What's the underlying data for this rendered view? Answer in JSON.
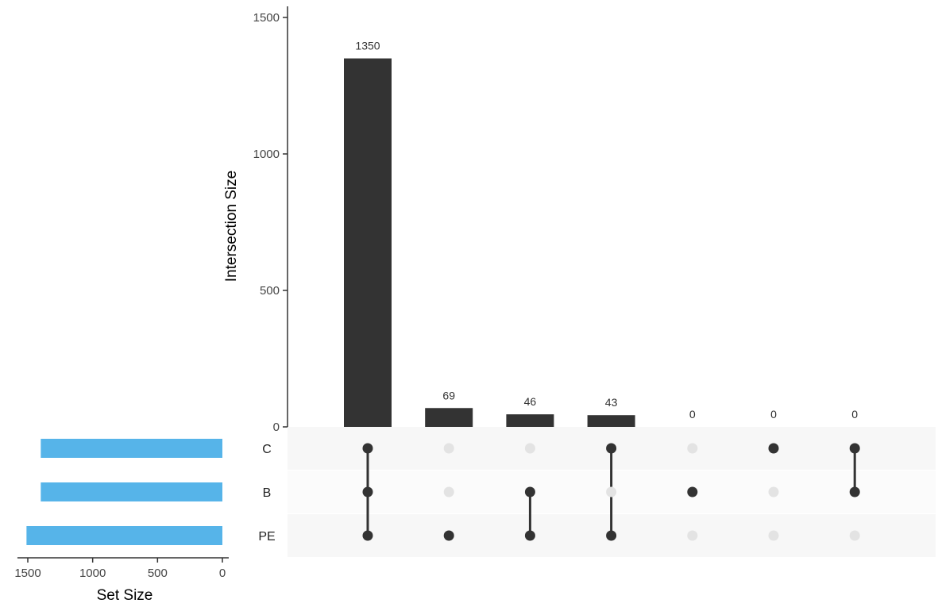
{
  "chart_data": {
    "type": "bar",
    "kind": "upset",
    "ylabel": "Intersection Size",
    "xlabel": "Set Size",
    "ylim": [
      0,
      1500
    ],
    "yticks": [
      0,
      500,
      1000,
      1500
    ],
    "sets": [
      "C",
      "B",
      "PE"
    ],
    "set_sizes": [
      1400,
      1400,
      1510
    ],
    "set_size_ticks": [
      1500,
      1000,
      500,
      0
    ],
    "set_size_lim": [
      0,
      1580
    ],
    "intersections": [
      {
        "sets": [
          "C",
          "B",
          "PE"
        ],
        "value": 1350
      },
      {
        "sets": [
          "PE"
        ],
        "value": 69
      },
      {
        "sets": [
          "B",
          "PE"
        ],
        "value": 46
      },
      {
        "sets": [
          "C",
          "PE"
        ],
        "value": 43
      },
      {
        "sets": [
          "B"
        ],
        "value": 0
      },
      {
        "sets": [
          "C"
        ],
        "value": 0
      },
      {
        "sets": [
          "C",
          "B"
        ],
        "value": 0
      }
    ],
    "colors": {
      "bar": "#333333",
      "set_bar": "#56b4e9",
      "dot_active": "#333333",
      "dot_inactive": "#e3e3e3",
      "matrix_stripe": "#f7f7f7"
    }
  }
}
